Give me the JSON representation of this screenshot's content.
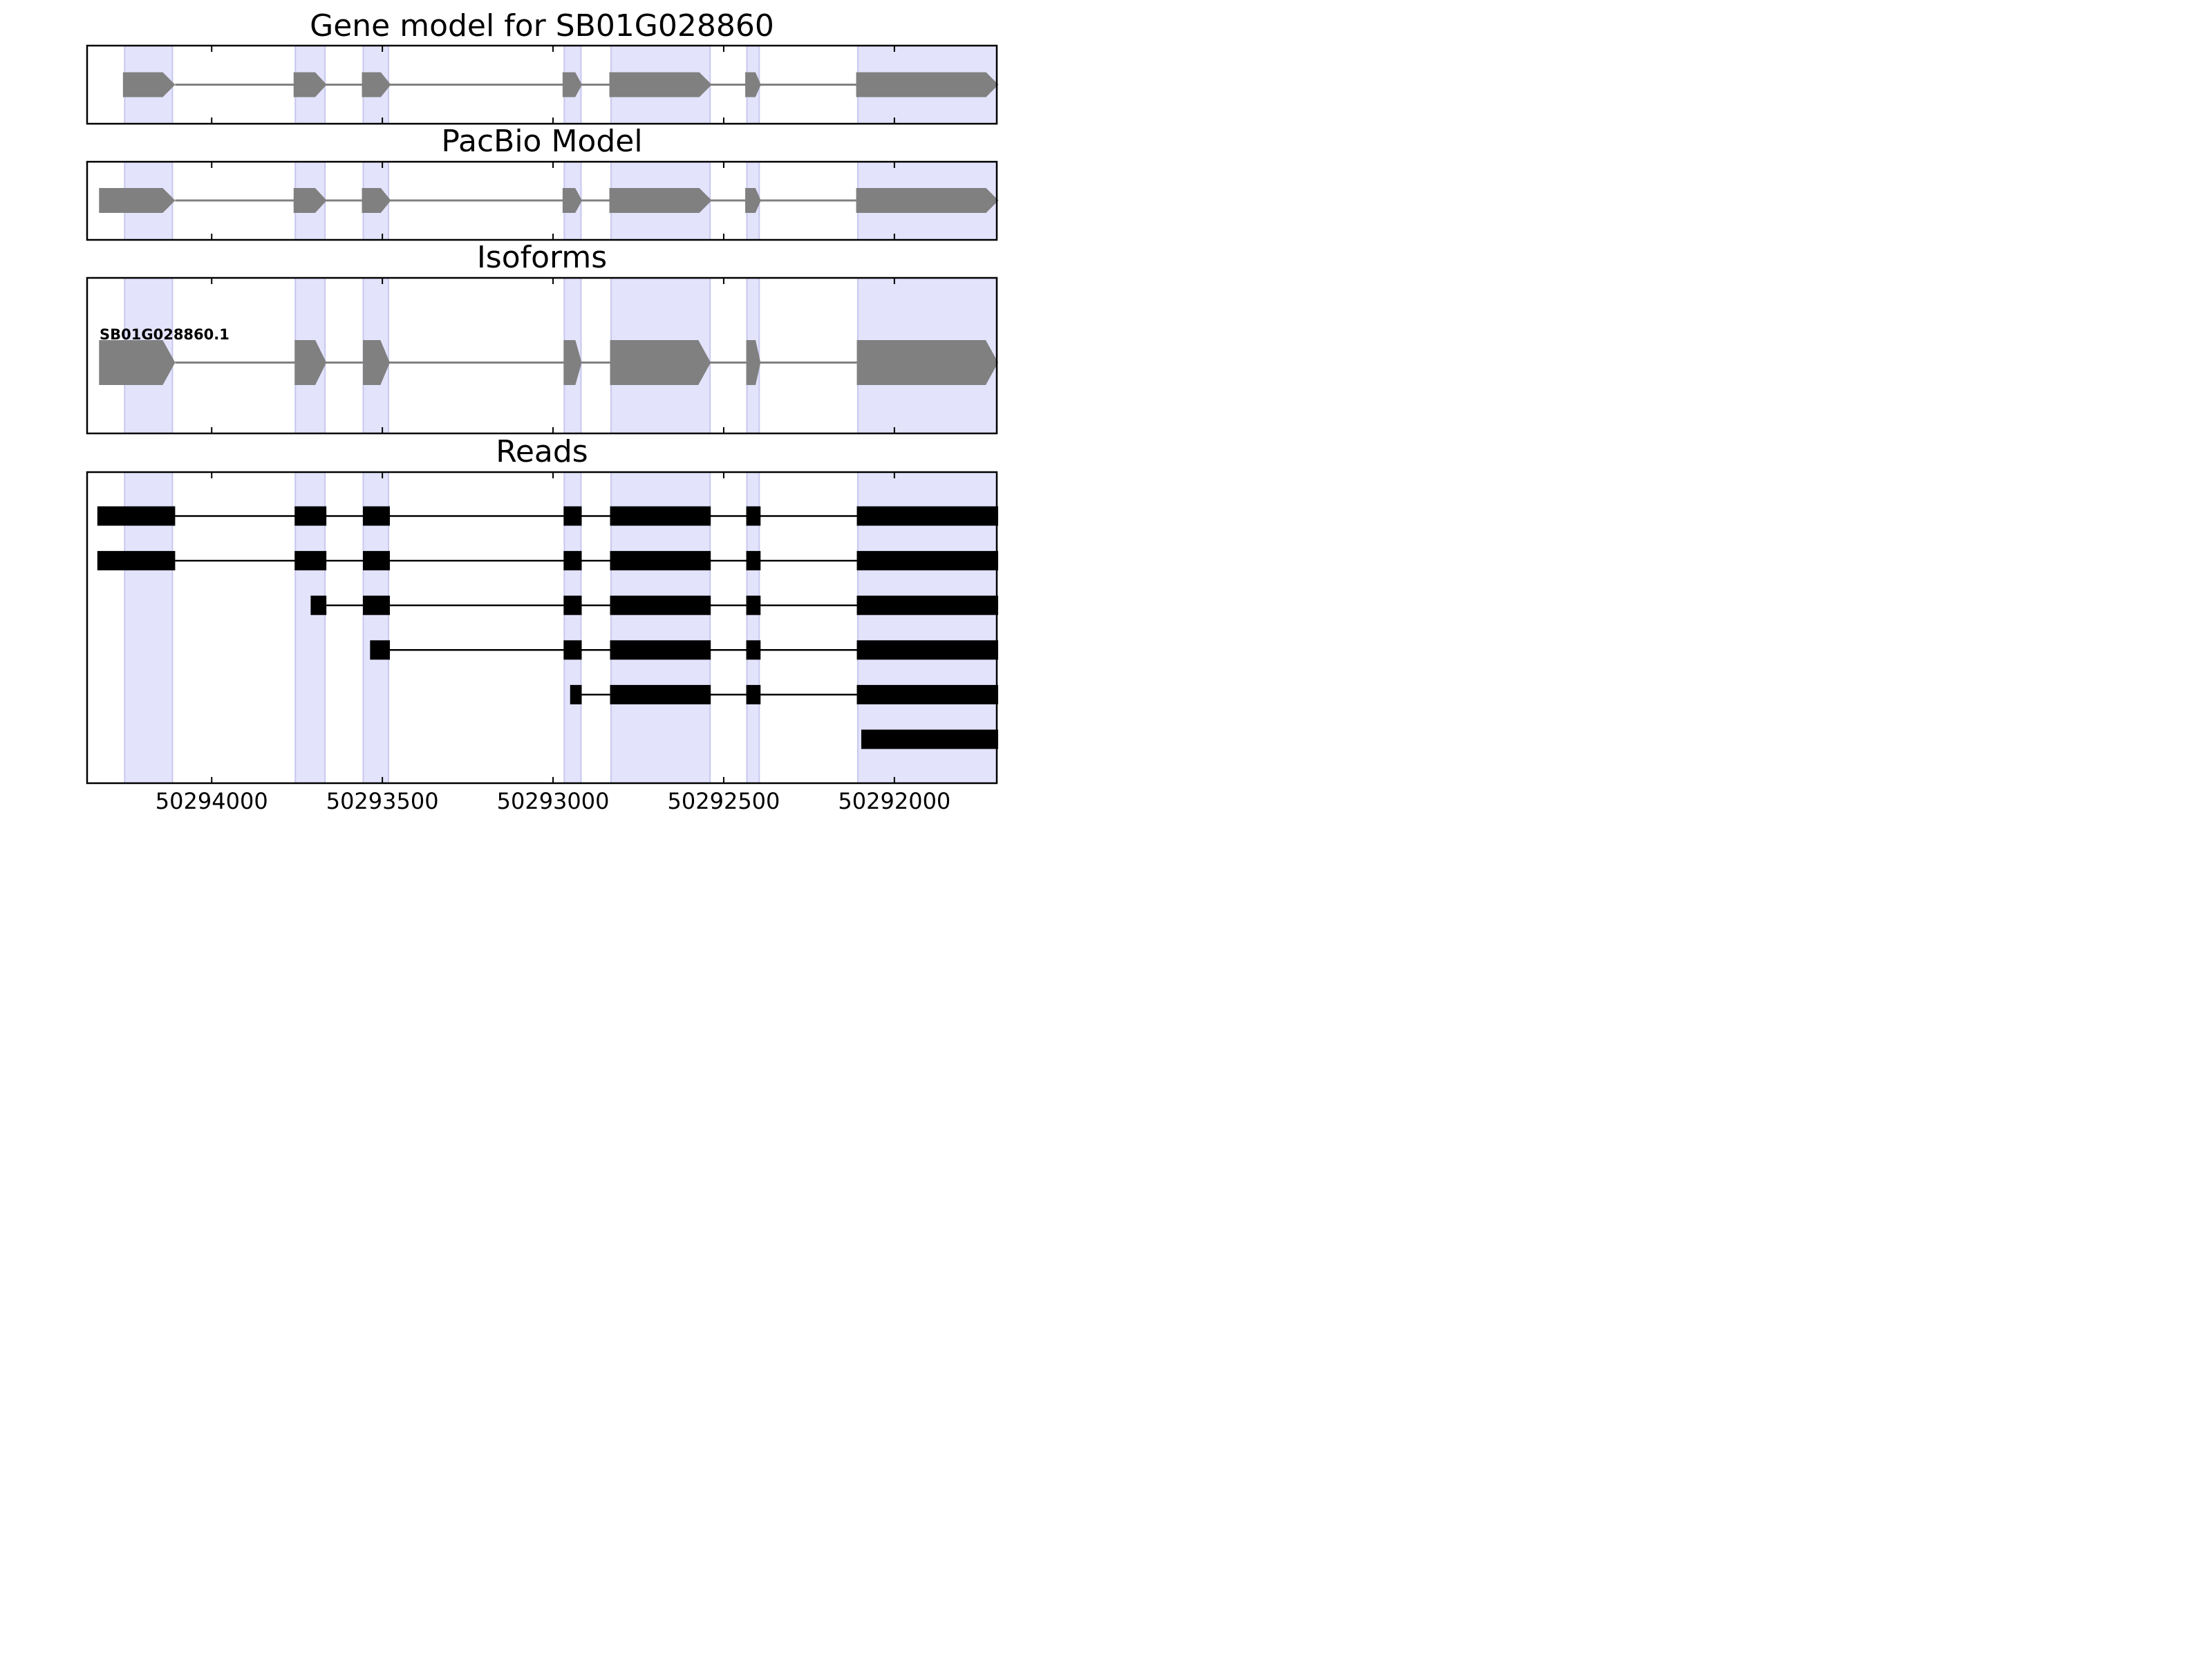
{
  "chart_data": {
    "type": "gene-structure",
    "x_reversed": true,
    "xlim": [
      50294365,
      50291700
    ],
    "xticks": [
      50294000,
      50293500,
      50293000,
      50292500,
      50292000
    ],
    "xtick_labels": [
      "50294000",
      "50293500",
      "50293000",
      "50292500",
      "50292000"
    ],
    "highlight_regions": [
      [
        50294255,
        50294115
      ],
      [
        50293755,
        50293668
      ],
      [
        50293556,
        50293482
      ],
      [
        50292967,
        50292918
      ],
      [
        50292830,
        50292540
      ],
      [
        50292432,
        50292396
      ],
      [
        50292107,
        50291700
      ]
    ],
    "panels": [
      {
        "key": "gene_model",
        "title": "Gene model for SB01G028860",
        "strand": "-",
        "color": "#808080",
        "exons": [
          [
            50294260,
            50294107
          ],
          [
            50293760,
            50293663
          ],
          [
            50293560,
            50293475
          ],
          [
            50292972,
            50292915
          ],
          [
            50292835,
            50292535
          ],
          [
            50292437,
            50292391
          ],
          [
            50292112,
            50291695
          ]
        ]
      },
      {
        "key": "pacbio_model",
        "title": "PacBio Model",
        "strand": "-",
        "color": "#808080",
        "exons": [
          [
            50294330,
            50294107
          ],
          [
            50293760,
            50293663
          ],
          [
            50293560,
            50293475
          ],
          [
            50292972,
            50292915
          ],
          [
            50292835,
            50292535
          ],
          [
            50292437,
            50292391
          ],
          [
            50292112,
            50291695
          ]
        ]
      },
      {
        "key": "isoforms",
        "title": "Isoforms",
        "strand": "-",
        "color": "#808080",
        "isoform_label": "SB01G028860.1",
        "exons": [
          [
            50294330,
            50294107
          ],
          [
            50293757,
            50293664
          ],
          [
            50293557,
            50293478
          ],
          [
            50292969,
            50292916
          ],
          [
            50292833,
            50292538
          ],
          [
            50292434,
            50292392
          ],
          [
            50292110,
            50291696
          ]
        ]
      },
      {
        "key": "reads",
        "title": "Reads",
        "color": "#000000",
        "reads": [
          [
            [
              50294335,
              50294107
            ],
            [
              50293757,
              50293664
            ],
            [
              50293557,
              50293478
            ],
            [
              50292969,
              50292916
            ],
            [
              50292833,
              50292538
            ],
            [
              50292434,
              50292392
            ],
            [
              50292110,
              50291696
            ]
          ],
          [
            [
              50294335,
              50294107
            ],
            [
              50293757,
              50293664
            ],
            [
              50293557,
              50293478
            ],
            [
              50292969,
              50292916
            ],
            [
              50292833,
              50292538
            ],
            [
              50292434,
              50292392
            ],
            [
              50292110,
              50291696
            ]
          ],
          [
            [
              50293710,
              50293664
            ],
            [
              50293557,
              50293478
            ],
            [
              50292969,
              50292916
            ],
            [
              50292833,
              50292538
            ],
            [
              50292434,
              50292392
            ],
            [
              50292110,
              50291696
            ]
          ],
          [
            [
              50293536,
              50293478
            ],
            [
              50292969,
              50292916
            ],
            [
              50292833,
              50292538
            ],
            [
              50292434,
              50292392
            ],
            [
              50292110,
              50291696
            ]
          ],
          [
            [
              50292950,
              50292916
            ],
            [
              50292833,
              50292538
            ],
            [
              50292434,
              50292392
            ],
            [
              50292110,
              50291696
            ]
          ],
          [
            [
              50292097,
              50291696
            ]
          ]
        ]
      }
    ],
    "colors": {
      "highlight": "#e3e3fc",
      "highlight_edge": "#c8c8ef",
      "gene": "#808080",
      "read": "#000000",
      "frame": "#000000"
    }
  }
}
